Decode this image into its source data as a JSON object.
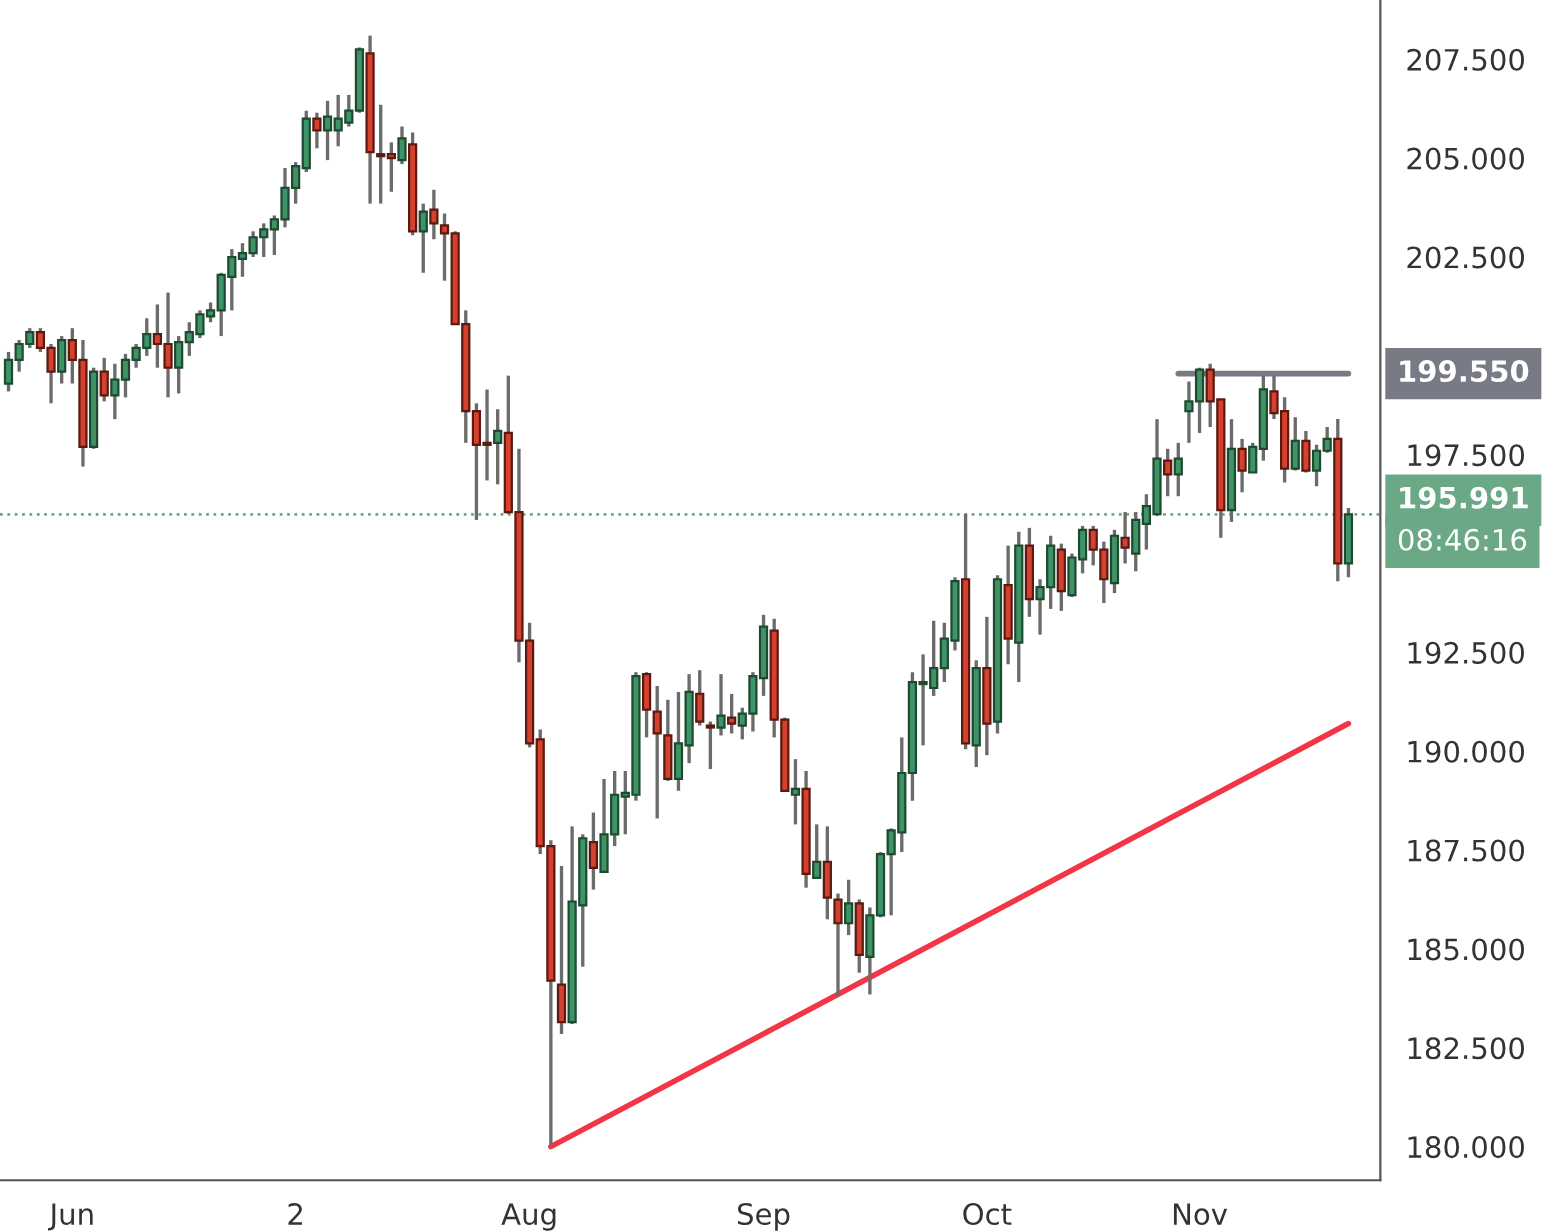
{
  "chart_data": {
    "type": "candlestick",
    "categories": [
      null,
      null,
      null,
      null,
      null,
      null,
      "Jun",
      null,
      null,
      null,
      null,
      null,
      null,
      null,
      null,
      null,
      null,
      null,
      null,
      null,
      null,
      null,
      null,
      null,
      null,
      null,
      null,
      "2",
      null,
      null,
      null,
      null,
      null,
      null,
      null,
      null,
      null,
      null,
      null,
      null,
      null,
      null,
      null,
      null,
      null,
      null,
      null,
      null,
      null,
      "Aug",
      null,
      null,
      null,
      null,
      null,
      null,
      null,
      null,
      null,
      null,
      null,
      null,
      null,
      null,
      null,
      null,
      null,
      null,
      null,
      null,
      null,
      "Sep",
      null,
      null,
      null,
      null,
      null,
      null,
      null,
      null,
      null,
      null,
      null,
      null,
      null,
      null,
      null,
      null,
      null,
      null,
      null,
      null,
      "Oct",
      null,
      null,
      null,
      null,
      null,
      null,
      null,
      null,
      null,
      null,
      null,
      null,
      null,
      null,
      null,
      null,
      null,
      null,
      null,
      "Nov",
      null,
      null,
      null,
      null,
      null,
      null,
      null,
      null,
      null,
      null,
      null,
      null,
      null,
      null
    ],
    "ohlc": [
      [
        199.3,
        200.1,
        199.1,
        199.9
      ],
      [
        199.9,
        200.4,
        199.6,
        200.3
      ],
      [
        200.3,
        200.7,
        200.2,
        200.6
      ],
      [
        200.6,
        200.7,
        200.1,
        200.2
      ],
      [
        200.2,
        200.3,
        198.8,
        199.6
      ],
      [
        199.6,
        200.5,
        199.3,
        200.4
      ],
      [
        200.4,
        200.7,
        199.3,
        199.9
      ],
      [
        199.9,
        200.4,
        197.2,
        197.7
      ],
      [
        197.7,
        199.7,
        197.65,
        199.6
      ],
      [
        199.6,
        199.95,
        198.85,
        199.0
      ],
      [
        199.0,
        199.8,
        198.4,
        199.4
      ],
      [
        199.4,
        200.05,
        198.95,
        199.9
      ],
      [
        199.9,
        200.3,
        199.7,
        200.2
      ],
      [
        200.2,
        200.95,
        200.0,
        200.55
      ],
      [
        200.55,
        201.3,
        199.7,
        200.3
      ],
      [
        200.3,
        201.6,
        198.95,
        199.7
      ],
      [
        199.7,
        200.5,
        199.05,
        200.35
      ],
      [
        200.35,
        200.85,
        200.0,
        200.6
      ],
      [
        200.55,
        201.15,
        200.45,
        201.05
      ],
      [
        201.0,
        201.35,
        200.85,
        201.15
      ],
      [
        201.15,
        202.1,
        200.5,
        202.05
      ],
      [
        202.0,
        202.7,
        201.15,
        202.5
      ],
      [
        202.45,
        202.85,
        202.0,
        202.6
      ],
      [
        202.6,
        203.15,
        202.5,
        203.0
      ],
      [
        203.0,
        203.35,
        202.5,
        203.2
      ],
      [
        203.2,
        203.55,
        202.55,
        203.45
      ],
      [
        203.45,
        204.75,
        203.25,
        204.25
      ],
      [
        204.25,
        204.9,
        203.85,
        204.8
      ],
      [
        204.75,
        206.2,
        204.65,
        206.0
      ],
      [
        206.0,
        206.15,
        205.25,
        205.7
      ],
      [
        205.7,
        206.45,
        204.95,
        206.05
      ],
      [
        205.7,
        206.6,
        205.3,
        206.0
      ],
      [
        205.9,
        206.6,
        205.8,
        206.2
      ],
      [
        206.2,
        207.8,
        206.15,
        207.75
      ],
      [
        207.65,
        208.1,
        203.85,
        205.15
      ],
      [
        205.1,
        206.35,
        203.85,
        205.05
      ],
      [
        205.1,
        205.4,
        204.15,
        205.0
      ],
      [
        204.95,
        205.8,
        204.85,
        205.5
      ],
      [
        205.35,
        205.65,
        203.05,
        203.15
      ],
      [
        203.15,
        203.85,
        202.1,
        203.65
      ],
      [
        203.7,
        204.2,
        202.95,
        203.35
      ],
      [
        203.3,
        203.6,
        201.9,
        203.1
      ],
      [
        203.1,
        203.15,
        200.8,
        200.8
      ],
      [
        200.8,
        201.15,
        197.8,
        198.6
      ],
      [
        198.6,
        198.8,
        195.85,
        197.75
      ],
      [
        197.8,
        199.15,
        196.85,
        197.75
      ],
      [
        197.8,
        198.65,
        196.75,
        198.1
      ],
      [
        198.05,
        199.5,
        196.0,
        196.05
      ],
      [
        196.05,
        197.65,
        192.25,
        192.8
      ],
      [
        192.8,
        193.25,
        190.1,
        190.2
      ],
      [
        190.3,
        190.55,
        187.4,
        187.6
      ],
      [
        187.6,
        187.75,
        180.05,
        184.2
      ],
      [
        184.1,
        187.1,
        182.85,
        183.15
      ],
      [
        183.15,
        188.1,
        183.1,
        186.2
      ],
      [
        186.1,
        187.9,
        184.55,
        187.8
      ],
      [
        187.7,
        188.45,
        186.5,
        187.05
      ],
      [
        186.95,
        189.3,
        186.95,
        187.9
      ],
      [
        187.9,
        189.5,
        187.6,
        188.9
      ],
      [
        188.85,
        189.5,
        187.9,
        188.95
      ],
      [
        188.9,
        192.0,
        188.75,
        191.9
      ],
      [
        191.95,
        192.0,
        190.35,
        191.05
      ],
      [
        191.0,
        191.65,
        188.3,
        190.45
      ],
      [
        190.4,
        191.3,
        189.25,
        189.3
      ],
      [
        189.3,
        191.5,
        189.0,
        190.2
      ],
      [
        190.15,
        191.95,
        189.7,
        191.5
      ],
      [
        191.45,
        192.05,
        190.65,
        190.75
      ],
      [
        190.65,
        190.75,
        189.55,
        190.6
      ],
      [
        190.6,
        191.95,
        190.4,
        190.9
      ],
      [
        190.85,
        191.45,
        190.45,
        190.7
      ],
      [
        190.65,
        191.1,
        190.3,
        190.95
      ],
      [
        190.95,
        192.0,
        190.5,
        191.9
      ],
      [
        191.85,
        193.45,
        191.4,
        193.15
      ],
      [
        193.05,
        193.35,
        190.35,
        190.8
      ],
      [
        190.8,
        190.85,
        189.0,
        189.0
      ],
      [
        188.9,
        189.8,
        188.15,
        189.05
      ],
      [
        189.05,
        189.5,
        186.55,
        186.9
      ],
      [
        186.8,
        188.15,
        186.8,
        187.2
      ],
      [
        187.2,
        188.1,
        185.75,
        186.3
      ],
      [
        186.25,
        186.4,
        183.8,
        185.65
      ],
      [
        185.65,
        186.75,
        185.35,
        186.15
      ],
      [
        186.15,
        186.25,
        184.4,
        184.85
      ],
      [
        184.8,
        186.05,
        183.85,
        185.85
      ],
      [
        185.85,
        187.45,
        185.8,
        187.4
      ],
      [
        187.4,
        188.05,
        185.85,
        188.0
      ],
      [
        187.95,
        190.35,
        187.45,
        189.45
      ],
      [
        189.45,
        192.0,
        188.75,
        191.75
      ],
      [
        191.7,
        192.45,
        190.15,
        191.75
      ],
      [
        191.6,
        193.3,
        191.4,
        192.1
      ],
      [
        192.1,
        193.25,
        191.75,
        192.85
      ],
      [
        192.8,
        194.4,
        192.55,
        194.3
      ],
      [
        194.35,
        196.0,
        190.05,
        190.2
      ],
      [
        190.15,
        192.3,
        189.6,
        192.1
      ],
      [
        192.1,
        193.4,
        189.9,
        190.7
      ],
      [
        190.75,
        194.45,
        190.45,
        194.35
      ],
      [
        194.2,
        195.2,
        192.2,
        192.85
      ],
      [
        192.75,
        195.55,
        191.75,
        195.2
      ],
      [
        195.2,
        195.65,
        193.4,
        193.85
      ],
      [
        193.85,
        194.35,
        192.95,
        194.15
      ],
      [
        194.15,
        195.45,
        193.6,
        195.2
      ],
      [
        195.1,
        195.25,
        193.55,
        194.05
      ],
      [
        193.95,
        195.0,
        193.9,
        194.9
      ],
      [
        194.85,
        195.7,
        194.5,
        195.6
      ],
      [
        195.6,
        195.7,
        194.7,
        195.1
      ],
      [
        195.1,
        195.3,
        193.75,
        194.35
      ],
      [
        194.25,
        195.6,
        194.0,
        195.45
      ],
      [
        195.4,
        196.05,
        194.75,
        195.15
      ],
      [
        195.0,
        196.05,
        194.55,
        195.85
      ],
      [
        195.75,
        196.5,
        195.1,
        196.2
      ],
      [
        196.0,
        198.4,
        195.95,
        197.4
      ],
      [
        197.35,
        197.65,
        196.45,
        197.0
      ],
      [
        197.0,
        197.8,
        196.45,
        197.4
      ],
      [
        198.6,
        199.35,
        197.8,
        198.85
      ],
      [
        198.85,
        199.7,
        198.05,
        199.65
      ],
      [
        199.65,
        199.8,
        198.2,
        198.85
      ],
      [
        198.9,
        198.9,
        195.4,
        196.1
      ],
      [
        196.1,
        198.4,
        195.8,
        197.65
      ],
      [
        197.65,
        197.9,
        196.55,
        197.1
      ],
      [
        197.05,
        197.8,
        197.05,
        197.7
      ],
      [
        197.65,
        199.5,
        197.35,
        199.15
      ],
      [
        199.1,
        199.5,
        198.4,
        198.55
      ],
      [
        198.6,
        198.95,
        196.8,
        197.15
      ],
      [
        197.15,
        198.45,
        197.1,
        197.85
      ],
      [
        197.85,
        198.1,
        197.05,
        197.1
      ],
      [
        197.1,
        197.75,
        196.7,
        197.6
      ],
      [
        197.6,
        198.2,
        197.55,
        197.9
      ],
      [
        197.9,
        198.4,
        194.3,
        194.75
      ],
      [
        194.75,
        196.15,
        194.4,
        195.99
      ]
    ],
    "series": [
      {
        "type": "line",
        "color": "#f23645",
        "values": [
          null,
          null,
          null,
          null,
          null,
          null,
          null,
          null,
          null,
          null,
          null,
          null,
          null,
          null,
          null,
          null,
          null,
          null,
          null,
          null,
          null,
          null,
          null,
          null,
          null,
          null,
          null,
          null,
          null,
          null,
          null,
          null,
          null,
          null,
          null,
          null,
          null,
          null,
          null,
          null,
          null,
          null,
          null,
          null,
          null,
          null,
          null,
          null,
          null,
          null,
          null,
          180.0,
          null,
          null,
          null,
          null,
          null,
          null,
          null,
          null,
          null,
          null,
          null,
          null,
          null,
          null,
          null,
          null,
          null,
          null,
          null,
          null,
          null,
          null,
          null,
          null,
          null,
          null,
          null,
          null,
          null,
          null,
          null,
          null,
          null,
          null,
          null,
          null,
          null,
          null,
          null,
          null,
          null,
          null,
          null,
          null,
          null,
          null,
          null,
          null,
          null,
          null,
          null,
          null,
          null,
          null,
          null,
          null,
          null,
          null,
          null,
          null,
          null,
          null,
          null,
          null,
          null,
          null,
          null,
          null,
          null,
          null,
          null,
          null,
          null,
          null,
          190.7
        ]
      },
      {
        "type": "line",
        "color": "#787b86",
        "values": [
          null,
          null,
          null,
          null,
          null,
          null,
          null,
          null,
          null,
          null,
          null,
          null,
          null,
          null,
          null,
          null,
          null,
          null,
          null,
          null,
          null,
          null,
          null,
          null,
          null,
          null,
          null,
          null,
          null,
          null,
          null,
          null,
          null,
          null,
          null,
          null,
          null,
          null,
          null,
          null,
          null,
          null,
          null,
          null,
          null,
          null,
          null,
          null,
          null,
          null,
          null,
          null,
          null,
          null,
          null,
          null,
          null,
          null,
          null,
          null,
          null,
          null,
          null,
          null,
          null,
          null,
          null,
          null,
          null,
          null,
          null,
          null,
          null,
          null,
          null,
          null,
          null,
          null,
          null,
          null,
          null,
          null,
          null,
          null,
          null,
          null,
          null,
          null,
          null,
          null,
          null,
          null,
          null,
          null,
          null,
          null,
          null,
          null,
          null,
          null,
          null,
          null,
          null,
          null,
          null,
          null,
          null,
          null,
          null,
          null,
          199.55,
          199.55,
          199.55,
          199.55,
          199.55,
          199.55,
          199.55,
          199.55,
          199.55,
          199.55,
          199.55,
          199.55,
          199.55,
          199.55,
          199.55,
          199.55,
          199.55
        ]
      }
    ],
    "ylim": [
      179.15,
      209.0
    ],
    "yticks": [
      {
        "value": 180,
        "label": "180.000"
      },
      {
        "value": 182.5,
        "label": "182.500"
      },
      {
        "value": 185,
        "label": "185.000"
      },
      {
        "value": 187.5,
        "label": "187.500"
      },
      {
        "value": 190,
        "label": "190.000"
      },
      {
        "value": 192.5,
        "label": "192.500"
      },
      {
        "value": 197.5,
        "label": "197.500"
      },
      {
        "value": 202.5,
        "label": "202.500"
      },
      {
        "value": 205,
        "label": "205.000"
      },
      {
        "value": 207.5,
        "label": "207.500"
      }
    ],
    "ref_lines": [
      {
        "axis": "y",
        "value": 195.991,
        "label": "195.991",
        "color": "#6aa886",
        "line_style": "dotted"
      }
    ],
    "annotations": [
      "199.550",
      "08:46:16"
    ]
  }
}
